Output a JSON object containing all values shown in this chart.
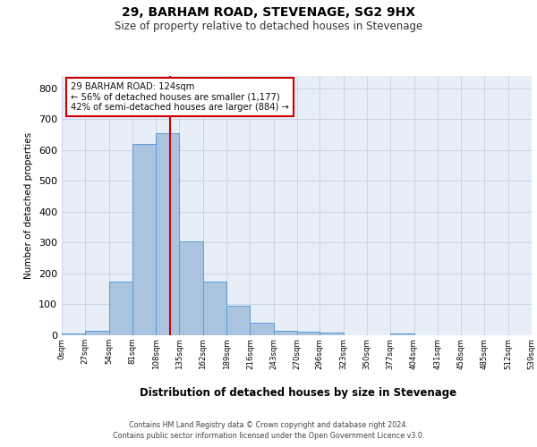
{
  "title1": "29, BARHAM ROAD, STEVENAGE, SG2 9HX",
  "title2": "Size of property relative to detached houses in Stevenage",
  "xlabel": "Distribution of detached houses by size in Stevenage",
  "ylabel": "Number of detached properties",
  "bar_edges": [
    0,
    27,
    54,
    81,
    108,
    135,
    162,
    189,
    216,
    243,
    270,
    296,
    323,
    350,
    377,
    404,
    431,
    458,
    485,
    512,
    539
  ],
  "bar_heights": [
    5,
    15,
    175,
    620,
    655,
    305,
    175,
    97,
    40,
    15,
    12,
    8,
    1,
    0,
    5,
    0,
    0,
    0,
    0,
    0
  ],
  "bar_color": "#aac4e0",
  "bar_edge_color": "#5b9bd5",
  "red_line_x": 124,
  "ylim": [
    0,
    840
  ],
  "yticks": [
    0,
    100,
    200,
    300,
    400,
    500,
    600,
    700,
    800
  ],
  "annotation_text": "29 BARHAM ROAD: 124sqm\n← 56% of detached houses are smaller (1,177)\n42% of semi-detached houses are larger (884) →",
  "annotation_box_color": "#ffffff",
  "annotation_box_edgecolor": "#cc0000",
  "footer1": "Contains HM Land Registry data © Crown copyright and database right 2024.",
  "footer2": "Contains public sector information licensed under the Open Government Licence v3.0.",
  "grid_color": "#c8d4e8",
  "background_color": "#e8eef8",
  "tick_labels": [
    "0sqm",
    "27sqm",
    "54sqm",
    "81sqm",
    "108sqm",
    "135sqm",
    "162sqm",
    "189sqm",
    "216sqm",
    "243sqm",
    "270sqm",
    "296sqm",
    "323sqm",
    "350sqm",
    "377sqm",
    "404sqm",
    "431sqm",
    "458sqm",
    "485sqm",
    "512sqm",
    "539sqm"
  ],
  "fig_width": 6.0,
  "fig_height": 5.0
}
